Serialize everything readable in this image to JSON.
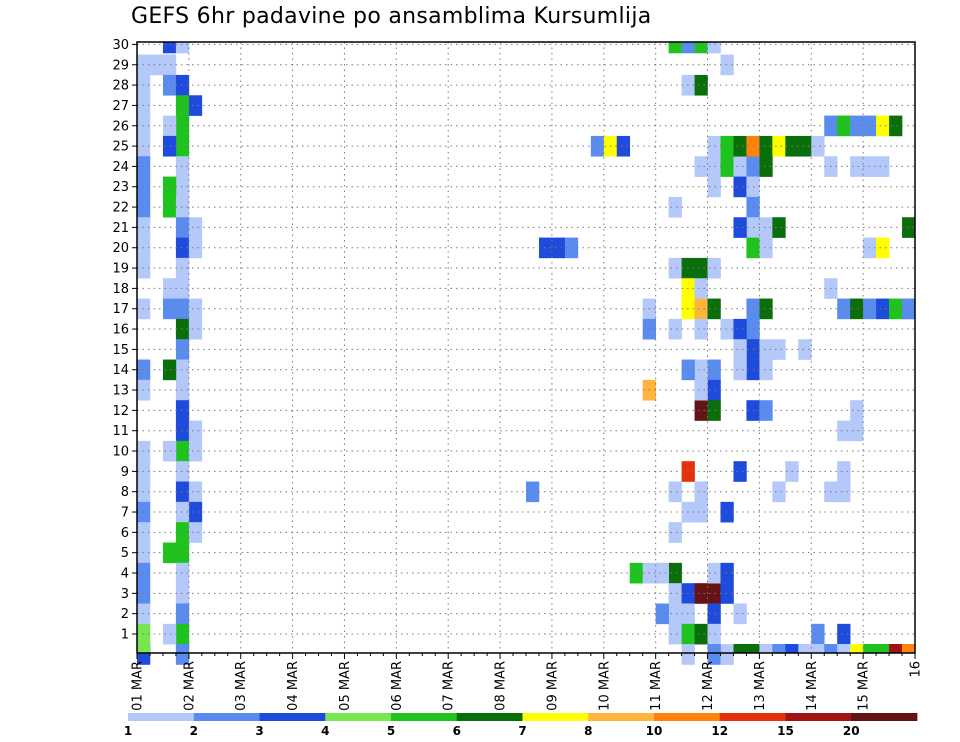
{
  "chart_data": {
    "type": "heatmap",
    "title": "GEFS 6hr padavine po ansamblima Kursumlija",
    "xlabel": "",
    "ylabel": "",
    "y_tick_labels": [
      "1",
      "2",
      "3",
      "4",
      "5",
      "6",
      "7",
      "8",
      "9",
      "10",
      "11",
      "12",
      "13",
      "14",
      "15",
      "16",
      "17",
      "18",
      "19",
      "20",
      "21",
      "22",
      "23",
      "24",
      "25",
      "26",
      "27",
      "28",
      "29",
      "30"
    ],
    "x_tick_labels": [
      "01 MAR",
      "02 MAR",
      "03 MAR",
      "04 MAR",
      "05 MAR",
      "06 MAR",
      "07 MAR",
      "08 MAR",
      "09 MAR",
      "10 MAR",
      "11 MAR",
      "12 MAR",
      "13 MAR",
      "14 MAR",
      "15 MAR",
      "16"
    ],
    "x_range_steps": [
      0,
      60
    ],
    "y_range_members": [
      0,
      30
    ],
    "grid": true,
    "legend_placement": "bottom",
    "legend": {
      "thresholds": [
        "1",
        "2",
        "3",
        "4",
        "5",
        "6",
        "7",
        "8",
        "10",
        "12",
        "15",
        "20"
      ],
      "colors": [
        "#b4c8fa",
        "#5a8cf0",
        "#1e4bdc",
        "#78e650",
        "#1ec31e",
        "#0a6e0a",
        "#ffff00",
        "#ffb43c",
        "#ff820a",
        "#e6320a",
        "#a01414",
        "#641414"
      ]
    },
    "cells": [
      [
        0,
        29,
        0
      ],
      [
        1,
        29,
        0
      ],
      [
        2,
        29,
        0
      ],
      [
        0,
        28,
        0
      ],
      [
        0,
        27,
        0
      ],
      [
        0,
        26,
        0
      ],
      [
        0,
        25,
        0
      ],
      [
        0,
        24,
        1
      ],
      [
        0,
        23,
        1
      ],
      [
        0,
        22,
        1
      ],
      [
        0,
        21,
        0
      ],
      [
        0,
        20,
        0
      ],
      [
        0,
        19,
        0
      ],
      [
        0,
        17,
        0
      ],
      [
        0,
        14,
        1
      ],
      [
        0,
        13,
        0
      ],
      [
        0,
        10,
        0
      ],
      [
        0,
        9,
        0
      ],
      [
        0,
        8,
        0
      ],
      [
        0,
        7,
        1
      ],
      [
        0,
        6,
        0
      ],
      [
        0,
        5,
        0
      ],
      [
        0,
        4,
        1
      ],
      [
        0,
        3,
        1
      ],
      [
        0,
        2,
        0
      ],
      [
        0,
        1,
        3
      ],
      [
        0,
        0,
        2
      ],
      [
        0,
        -1,
        3
      ],
      [
        2,
        30,
        2
      ],
      [
        3,
        30,
        0
      ],
      [
        2,
        28,
        1
      ],
      [
        3,
        28,
        2
      ],
      [
        3,
        27,
        4
      ],
      [
        4,
        27,
        2
      ],
      [
        3,
        26,
        4
      ],
      [
        2,
        26,
        0
      ],
      [
        3,
        25,
        4
      ],
      [
        2,
        25,
        2
      ],
      [
        3,
        24,
        0
      ],
      [
        3,
        23,
        0
      ],
      [
        2,
        23,
        4
      ],
      [
        2,
        22,
        4
      ],
      [
        3,
        22,
        0
      ],
      [
        3,
        21,
        1
      ],
      [
        4,
        21,
        0
      ],
      [
        3,
        20,
        2
      ],
      [
        4,
        20,
        0
      ],
      [
        3,
        19,
        0
      ],
      [
        2,
        18,
        0
      ],
      [
        3,
        18,
        0
      ],
      [
        2,
        17,
        1
      ],
      [
        3,
        17,
        1
      ],
      [
        4,
        17,
        0
      ],
      [
        3,
        16,
        5
      ],
      [
        4,
        16,
        0
      ],
      [
        3,
        15,
        1
      ],
      [
        3,
        14,
        0
      ],
      [
        2,
        14,
        5
      ],
      [
        3,
        13,
        0
      ],
      [
        3,
        12,
        2
      ],
      [
        3,
        11,
        2
      ],
      [
        4,
        11,
        0
      ],
      [
        3,
        10,
        4
      ],
      [
        2,
        10,
        0
      ],
      [
        4,
        10,
        0
      ],
      [
        3,
        9,
        0
      ],
      [
        3,
        8,
        2
      ],
      [
        4,
        8,
        0
      ],
      [
        4,
        7,
        2
      ],
      [
        3,
        7,
        0
      ],
      [
        3,
        6,
        4
      ],
      [
        4,
        6,
        0
      ],
      [
        2,
        5,
        4
      ],
      [
        3,
        5,
        4
      ],
      [
        3,
        4,
        0
      ],
      [
        3,
        3,
        0
      ],
      [
        3,
        2,
        1
      ],
      [
        3,
        1,
        4
      ],
      [
        2,
        1,
        0
      ],
      [
        3,
        0,
        1
      ],
      [
        3,
        -1,
        1
      ],
      [
        31,
        20,
        2
      ],
      [
        32,
        20,
        2
      ],
      [
        33,
        20,
        1
      ],
      [
        30,
        8,
        1
      ],
      [
        35,
        25,
        1
      ],
      [
        36,
        25,
        6
      ],
      [
        37,
        25,
        2
      ],
      [
        38,
        4,
        4
      ],
      [
        39,
        4,
        0
      ],
      [
        40,
        4,
        0
      ],
      [
        41,
        4,
        5
      ],
      [
        41,
        30,
        4
      ],
      [
        42,
        30,
        1
      ],
      [
        43,
        30,
        4
      ],
      [
        44,
        30,
        0
      ],
      [
        42,
        28,
        0
      ],
      [
        43,
        28,
        5
      ],
      [
        45,
        29,
        0
      ],
      [
        41,
        22,
        0
      ],
      [
        44,
        24,
        0
      ],
      [
        45,
        24,
        4
      ],
      [
        46,
        24,
        0
      ],
      [
        47,
        24,
        1
      ],
      [
        48,
        24,
        5
      ],
      [
        46,
        23,
        2
      ],
      [
        47,
        23,
        0
      ],
      [
        44,
        23,
        0
      ],
      [
        43,
        24,
        0
      ],
      [
        44,
        25,
        0
      ],
      [
        45,
        25,
        4
      ],
      [
        46,
        25,
        5
      ],
      [
        47,
        25,
        8
      ],
      [
        48,
        25,
        5
      ],
      [
        49,
        25,
        6
      ],
      [
        50,
        25,
        5
      ],
      [
        51,
        25,
        5
      ],
      [
        52,
        25,
        0
      ],
      [
        47,
        22,
        1
      ],
      [
        47,
        21,
        0
      ],
      [
        46,
        21,
        2
      ],
      [
        47,
        20,
        4
      ],
      [
        48,
        20,
        0
      ],
      [
        48,
        21,
        0
      ],
      [
        41,
        19,
        0
      ],
      [
        42,
        19,
        5
      ],
      [
        43,
        19,
        5
      ],
      [
        44,
        19,
        0
      ],
      [
        42,
        18,
        6
      ],
      [
        43,
        18,
        0
      ],
      [
        39,
        17,
        0
      ],
      [
        42,
        17,
        6
      ],
      [
        43,
        17,
        7
      ],
      [
        44,
        17,
        5
      ],
      [
        47,
        17,
        1
      ],
      [
        48,
        17,
        5
      ],
      [
        47,
        16,
        1
      ],
      [
        45,
        16,
        0
      ],
      [
        46,
        16,
        2
      ],
      [
        47,
        15,
        2
      ],
      [
        48,
        15,
        0
      ],
      [
        49,
        15,
        0
      ],
      [
        51,
        15,
        0
      ],
      [
        46,
        15,
        0
      ],
      [
        39,
        16,
        1
      ],
      [
        41,
        16,
        0
      ],
      [
        43,
        16,
        0
      ],
      [
        47,
        14,
        2
      ],
      [
        44,
        14,
        1
      ],
      [
        43,
        14,
        0
      ],
      [
        46,
        14,
        0
      ],
      [
        48,
        14,
        0
      ],
      [
        42,
        14,
        1
      ],
      [
        44,
        13,
        2
      ],
      [
        39,
        13,
        7
      ],
      [
        43,
        12,
        11
      ],
      [
        44,
        12,
        5
      ],
      [
        47,
        12,
        2
      ],
      [
        48,
        12,
        1
      ],
      [
        43,
        13,
        0
      ],
      [
        42,
        9,
        9
      ],
      [
        46,
        9,
        2
      ],
      [
        41,
        8,
        0
      ],
      [
        43,
        8,
        0
      ],
      [
        42,
        7,
        0
      ],
      [
        43,
        7,
        0
      ],
      [
        45,
        7,
        2
      ],
      [
        41,
        6,
        0
      ],
      [
        49,
        8,
        0
      ],
      [
        54,
        8,
        0
      ],
      [
        53,
        8,
        0
      ],
      [
        50,
        9,
        0
      ],
      [
        54,
        9,
        0
      ],
      [
        40,
        4,
        0
      ],
      [
        41,
        3,
        0
      ],
      [
        42,
        3,
        2
      ],
      [
        43,
        3,
        11
      ],
      [
        44,
        3,
        11
      ],
      [
        45,
        3,
        2
      ],
      [
        44,
        4,
        0
      ],
      [
        45,
        4,
        2
      ],
      [
        41,
        2,
        0
      ],
      [
        40,
        2,
        1
      ],
      [
        42,
        2,
        0
      ],
      [
        44,
        2,
        2
      ],
      [
        46,
        2,
        0
      ],
      [
        41,
        1,
        0
      ],
      [
        42,
        1,
        4
      ],
      [
        43,
        1,
        5
      ],
      [
        44,
        1,
        0
      ],
      [
        44,
        0,
        1
      ],
      [
        45,
        0,
        0
      ],
      [
        42,
        0,
        0
      ],
      [
        52,
        1,
        1
      ],
      [
        54,
        1,
        2
      ],
      [
        53,
        26,
        1
      ],
      [
        54,
        26,
        4
      ],
      [
        55,
        26,
        1
      ],
      [
        56,
        26,
        1
      ],
      [
        57,
        26,
        6
      ],
      [
        58,
        26,
        5
      ],
      [
        53,
        24,
        0
      ],
      [
        55,
        24,
        0
      ],
      [
        56,
        24,
        0
      ],
      [
        57,
        24,
        0
      ],
      [
        56,
        20,
        0
      ],
      [
        57,
        20,
        6
      ],
      [
        54,
        17,
        1
      ],
      [
        55,
        17,
        5
      ],
      [
        56,
        17,
        1
      ],
      [
        57,
        17,
        2
      ],
      [
        58,
        17,
        4
      ],
      [
        59,
        17,
        1
      ],
      [
        60,
        17,
        1
      ],
      [
        53,
        18,
        0
      ],
      [
        55,
        12,
        0
      ],
      [
        54,
        11,
        0
      ],
      [
        55,
        11,
        0
      ],
      [
        49,
        21,
        5
      ],
      [
        60,
        21,
        5
      ],
      [
        46,
        -1,
        5
      ],
      [
        47,
        -1,
        5
      ],
      [
        48,
        -1,
        0
      ],
      [
        49,
        -1,
        1
      ],
      [
        50,
        -1,
        2
      ],
      [
        51,
        -1,
        0
      ],
      [
        52,
        -1,
        0
      ],
      [
        53,
        -1,
        1
      ],
      [
        54,
        -1,
        0
      ],
      [
        55,
        -1,
        6
      ],
      [
        56,
        -1,
        4
      ],
      [
        57,
        -1,
        4
      ],
      [
        58,
        -1,
        10
      ],
      [
        59,
        -1,
        9
      ],
      [
        60,
        -1,
        8
      ],
      [
        44,
        -1,
        1
      ]
    ]
  }
}
